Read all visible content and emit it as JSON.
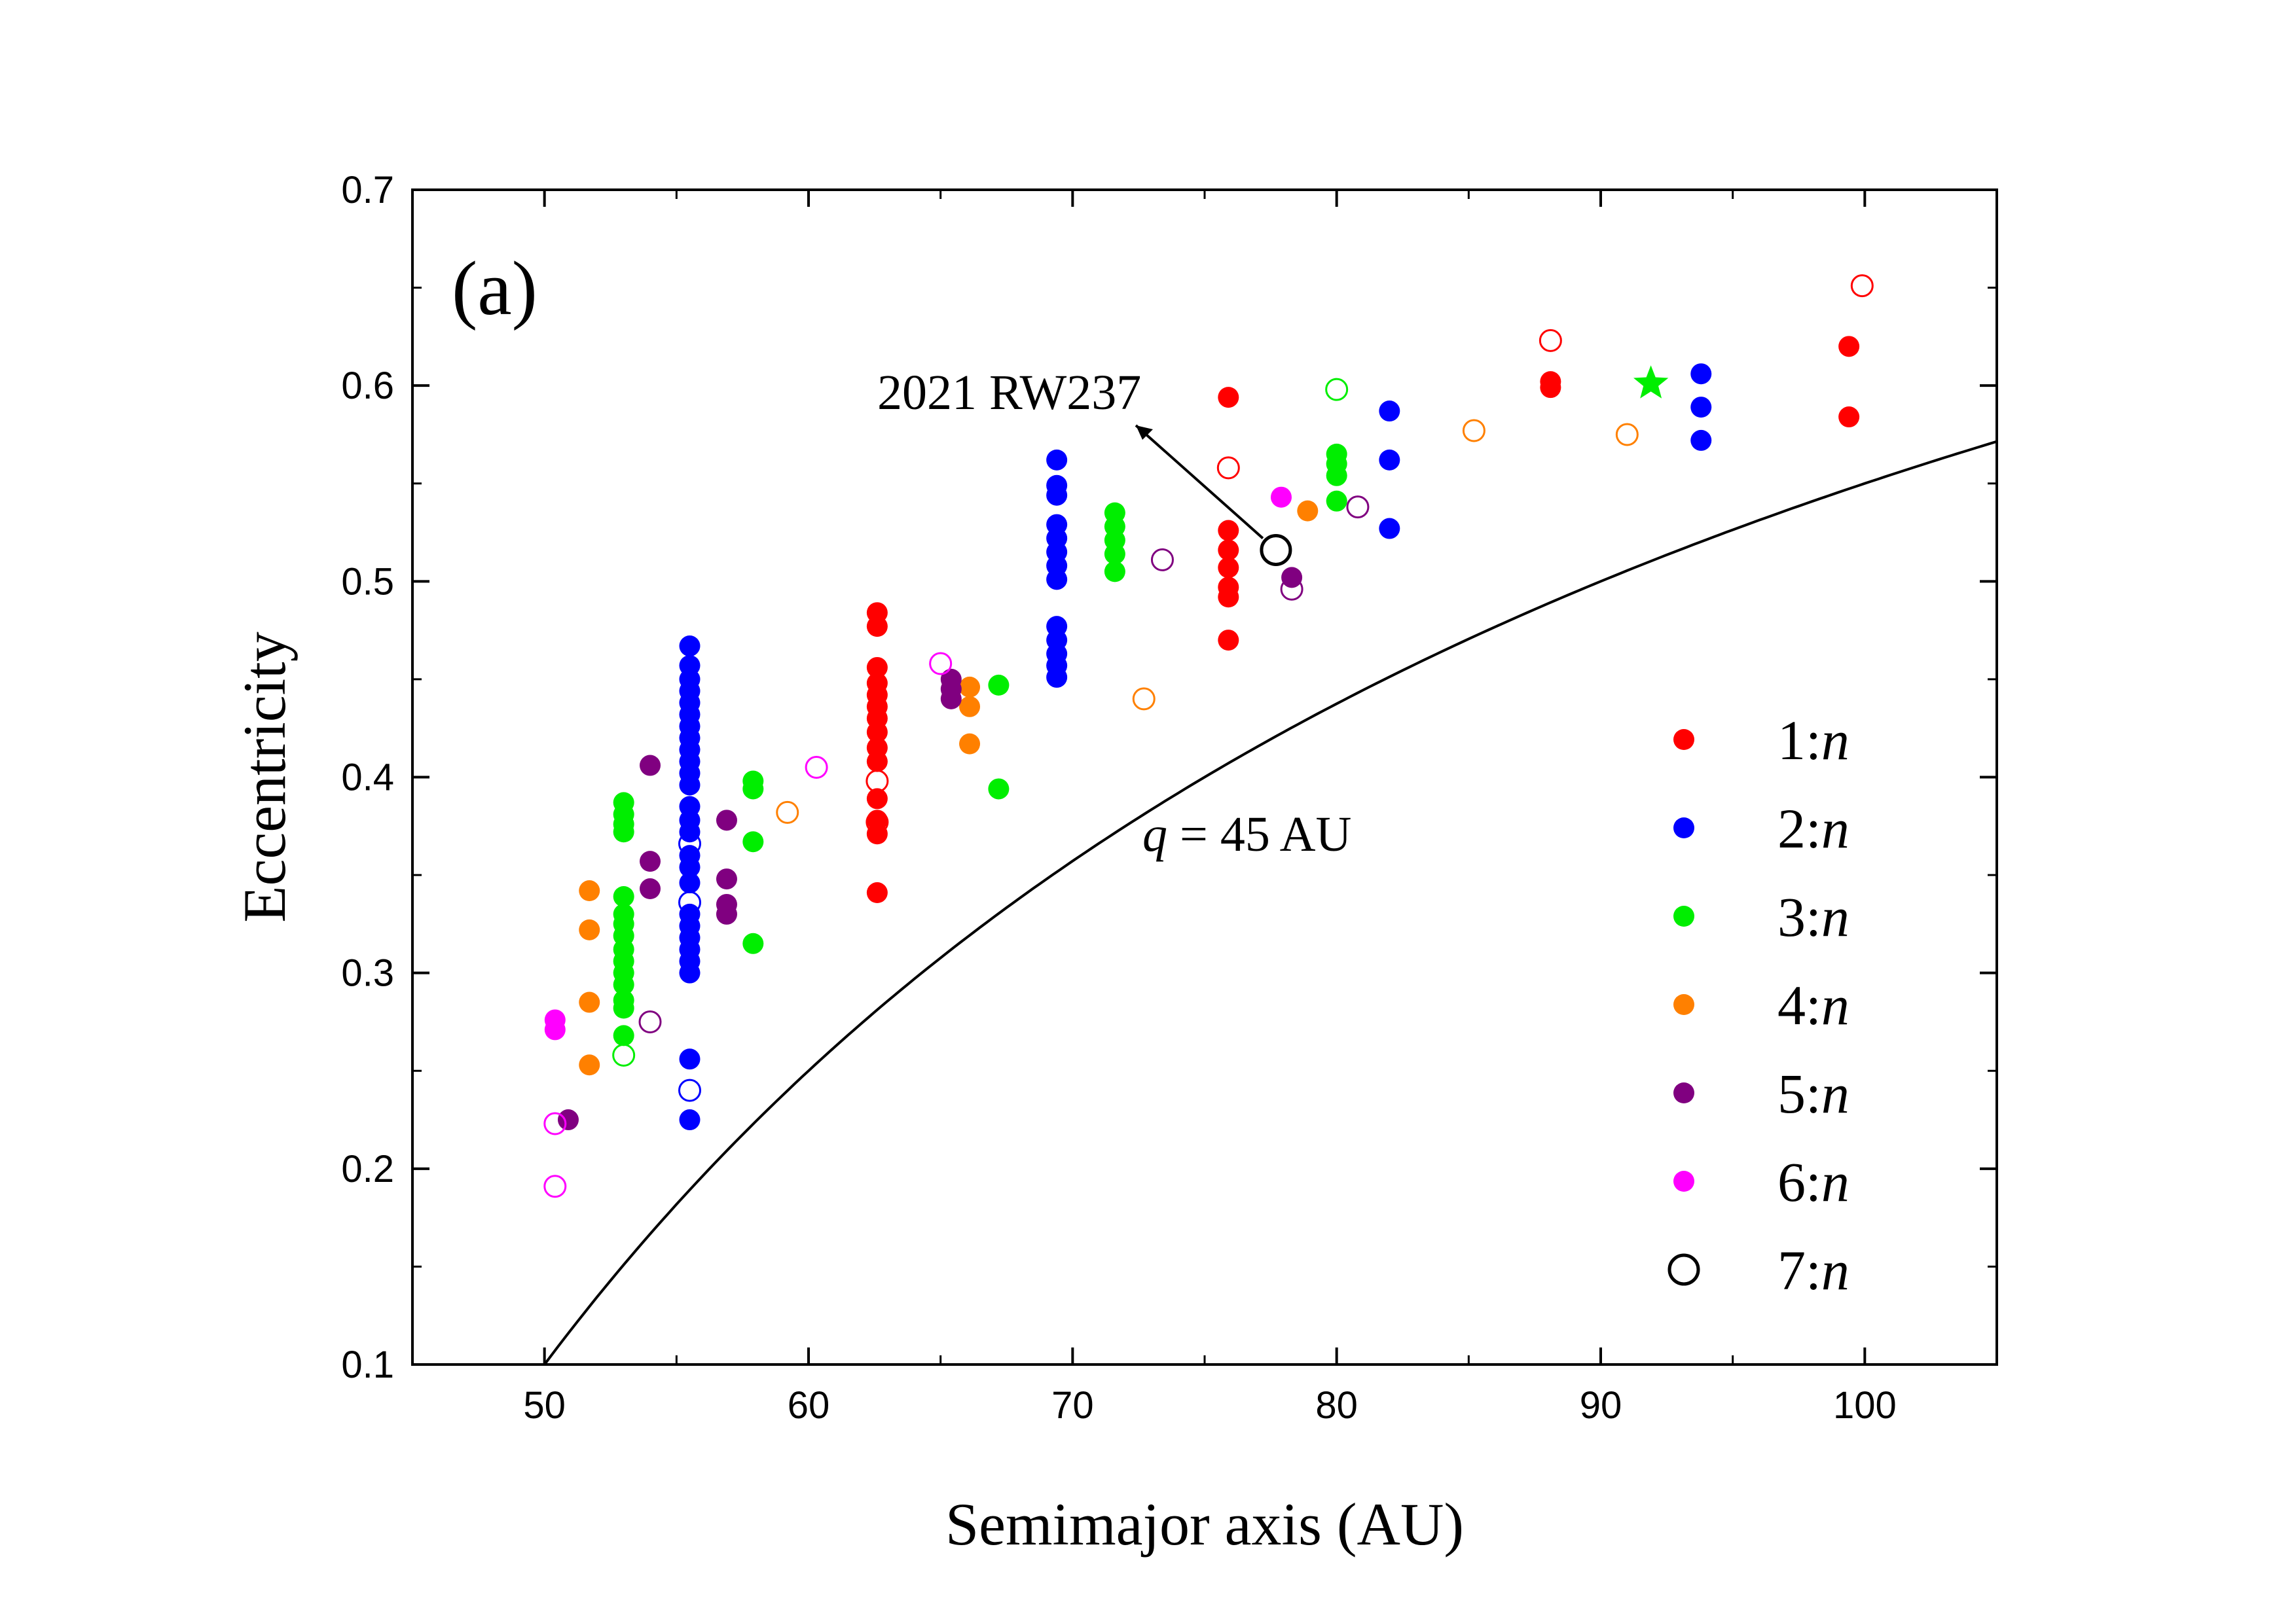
{
  "chart_data": {
    "type": "scatter",
    "panel_label": "(a)",
    "xlabel": "Semimajor axis (AU)",
    "ylabel": "Eccentricity",
    "xlim": [
      45,
      105
    ],
    "ylim": [
      0.1,
      0.7
    ],
    "x_ticks": [
      "50",
      "60",
      "70",
      "80",
      "90",
      "100"
    ],
    "y_ticks": [
      "0.1",
      "0.2",
      "0.3",
      "0.4",
      "0.5",
      "0.6",
      "0.7"
    ],
    "grid": false,
    "legend_position": "right",
    "colors": {
      "1:n": "#ff0000",
      "2:n": "#0000ff",
      "3:n": "#00ee00",
      "4:n": "#ff8000",
      "5:n": "#800080",
      "6:n": "#ff00ff",
      "7:n": "#000000"
    },
    "series": [
      {
        "name": "1:n",
        "filled": [
          [
            62.6,
            0.484
          ],
          [
            62.6,
            0.477
          ],
          [
            62.6,
            0.456
          ],
          [
            62.6,
            0.448
          ],
          [
            62.6,
            0.442
          ],
          [
            62.6,
            0.436
          ],
          [
            62.6,
            0.43
          ],
          [
            62.6,
            0.423
          ],
          [
            62.6,
            0.415
          ],
          [
            62.6,
            0.408
          ],
          [
            62.6,
            0.389
          ],
          [
            62.6,
            0.378
          ],
          [
            62.6,
            0.371
          ],
          [
            62.6,
            0.341
          ],
          [
            75.9,
            0.594
          ],
          [
            75.9,
            0.526
          ],
          [
            75.9,
            0.516
          ],
          [
            75.9,
            0.507
          ],
          [
            75.9,
            0.497
          ],
          [
            75.9,
            0.492
          ],
          [
            75.9,
            0.47
          ],
          [
            88.1,
            0.602
          ],
          [
            88.1,
            0.599
          ],
          [
            99.4,
            0.62
          ],
          [
            99.4,
            0.584
          ]
        ],
        "open": [
          [
            62.6,
            0.398
          ],
          [
            62.6,
            0.377
          ],
          [
            75.9,
            0.558
          ],
          [
            88.1,
            0.623
          ],
          [
            99.9,
            0.651
          ]
        ]
      },
      {
        "name": "2:n",
        "filled": [
          [
            55.5,
            0.467
          ],
          [
            55.5,
            0.457
          ],
          [
            55.5,
            0.45
          ],
          [
            55.5,
            0.444
          ],
          [
            55.5,
            0.438
          ],
          [
            55.5,
            0.432
          ],
          [
            55.5,
            0.426
          ],
          [
            55.5,
            0.42
          ],
          [
            55.5,
            0.414
          ],
          [
            55.5,
            0.408
          ],
          [
            55.5,
            0.402
          ],
          [
            55.5,
            0.396
          ],
          [
            55.5,
            0.385
          ],
          [
            55.5,
            0.378
          ],
          [
            55.5,
            0.372
          ],
          [
            55.5,
            0.36
          ],
          [
            55.5,
            0.354
          ],
          [
            55.5,
            0.346
          ],
          [
            55.5,
            0.33
          ],
          [
            55.5,
            0.324
          ],
          [
            55.5,
            0.318
          ],
          [
            55.5,
            0.312
          ],
          [
            55.5,
            0.306
          ],
          [
            55.5,
            0.3
          ],
          [
            55.5,
            0.256
          ],
          [
            55.5,
            0.225
          ],
          [
            69.4,
            0.562
          ],
          [
            69.4,
            0.549
          ],
          [
            69.4,
            0.544
          ],
          [
            69.4,
            0.529
          ],
          [
            69.4,
            0.522
          ],
          [
            69.4,
            0.515
          ],
          [
            69.4,
            0.508
          ],
          [
            69.4,
            0.501
          ],
          [
            69.4,
            0.477
          ],
          [
            69.4,
            0.47
          ],
          [
            69.4,
            0.463
          ],
          [
            69.4,
            0.457
          ],
          [
            69.4,
            0.451
          ],
          [
            82.0,
            0.587
          ],
          [
            82.0,
            0.562
          ],
          [
            82.0,
            0.527
          ],
          [
            93.8,
            0.606
          ],
          [
            93.8,
            0.589
          ],
          [
            93.8,
            0.572
          ]
        ],
        "open": [
          [
            55.5,
            0.366
          ],
          [
            55.5,
            0.336
          ],
          [
            55.5,
            0.24
          ]
        ]
      },
      {
        "name": "3:n",
        "filled": [
          [
            53.0,
            0.387
          ],
          [
            53.0,
            0.381
          ],
          [
            53.0,
            0.376
          ],
          [
            53.0,
            0.372
          ],
          [
            53.0,
            0.339
          ],
          [
            53.0,
            0.33
          ],
          [
            53.0,
            0.325
          ],
          [
            53.0,
            0.319
          ],
          [
            53.0,
            0.312
          ],
          [
            53.0,
            0.306
          ],
          [
            53.0,
            0.3
          ],
          [
            53.0,
            0.294
          ],
          [
            53.0,
            0.286
          ],
          [
            53.0,
            0.282
          ],
          [
            53.0,
            0.268
          ],
          [
            57.9,
            0.398
          ],
          [
            57.9,
            0.394
          ],
          [
            57.9,
            0.367
          ],
          [
            57.9,
            0.315
          ],
          [
            67.2,
            0.447
          ],
          [
            67.2,
            0.394
          ],
          [
            71.6,
            0.535
          ],
          [
            71.6,
            0.528
          ],
          [
            71.6,
            0.521
          ],
          [
            71.6,
            0.514
          ],
          [
            71.6,
            0.505
          ],
          [
            80.0,
            0.565
          ],
          [
            80.0,
            0.56
          ],
          [
            80.0,
            0.554
          ],
          [
            80.0,
            0.541
          ]
        ],
        "open": [
          [
            53.0,
            0.258
          ],
          [
            80.0,
            0.598
          ]
        ],
        "star": [
          [
            91.9,
            0.601
          ]
        ]
      },
      {
        "name": "4:n",
        "filled": [
          [
            51.7,
            0.342
          ],
          [
            51.7,
            0.322
          ],
          [
            51.7,
            0.285
          ],
          [
            51.7,
            0.253
          ],
          [
            66.1,
            0.446
          ],
          [
            66.1,
            0.436
          ],
          [
            66.1,
            0.417
          ],
          [
            78.9,
            0.536
          ]
        ],
        "open": [
          [
            59.2,
            0.382
          ],
          [
            72.7,
            0.44
          ],
          [
            85.2,
            0.577
          ],
          [
            91.0,
            0.575
          ]
        ]
      },
      {
        "name": "5:n",
        "filled": [
          [
            50.9,
            0.225
          ],
          [
            54.0,
            0.406
          ],
          [
            54.0,
            0.357
          ],
          [
            54.0,
            0.343
          ],
          [
            56.9,
            0.378
          ],
          [
            56.9,
            0.348
          ],
          [
            56.9,
            0.335
          ],
          [
            56.9,
            0.33
          ],
          [
            65.4,
            0.45
          ],
          [
            65.4,
            0.445
          ],
          [
            65.4,
            0.44
          ],
          [
            78.3,
            0.502
          ]
        ],
        "open": [
          [
            54.0,
            0.275
          ],
          [
            73.4,
            0.511
          ],
          [
            78.3,
            0.496
          ],
          [
            80.8,
            0.538
          ]
        ]
      },
      {
        "name": "6:n",
        "filled": [
          [
            50.4,
            0.276
          ],
          [
            50.4,
            0.271
          ],
          [
            77.9,
            0.543
          ]
        ],
        "open": [
          [
            50.4,
            0.223
          ],
          [
            50.4,
            0.191
          ],
          [
            60.3,
            0.405
          ],
          [
            65.0,
            0.458
          ]
        ]
      },
      {
        "name": "7:n",
        "filled": [],
        "open": [
          [
            77.7,
            0.516
          ]
        ]
      }
    ],
    "curve": {
      "label_q": "q",
      "label_rest": " = 45 AU",
      "q_au": 45
    },
    "annotation": {
      "text": "2021 RW237",
      "target": [
        77.7,
        0.516
      ]
    }
  }
}
